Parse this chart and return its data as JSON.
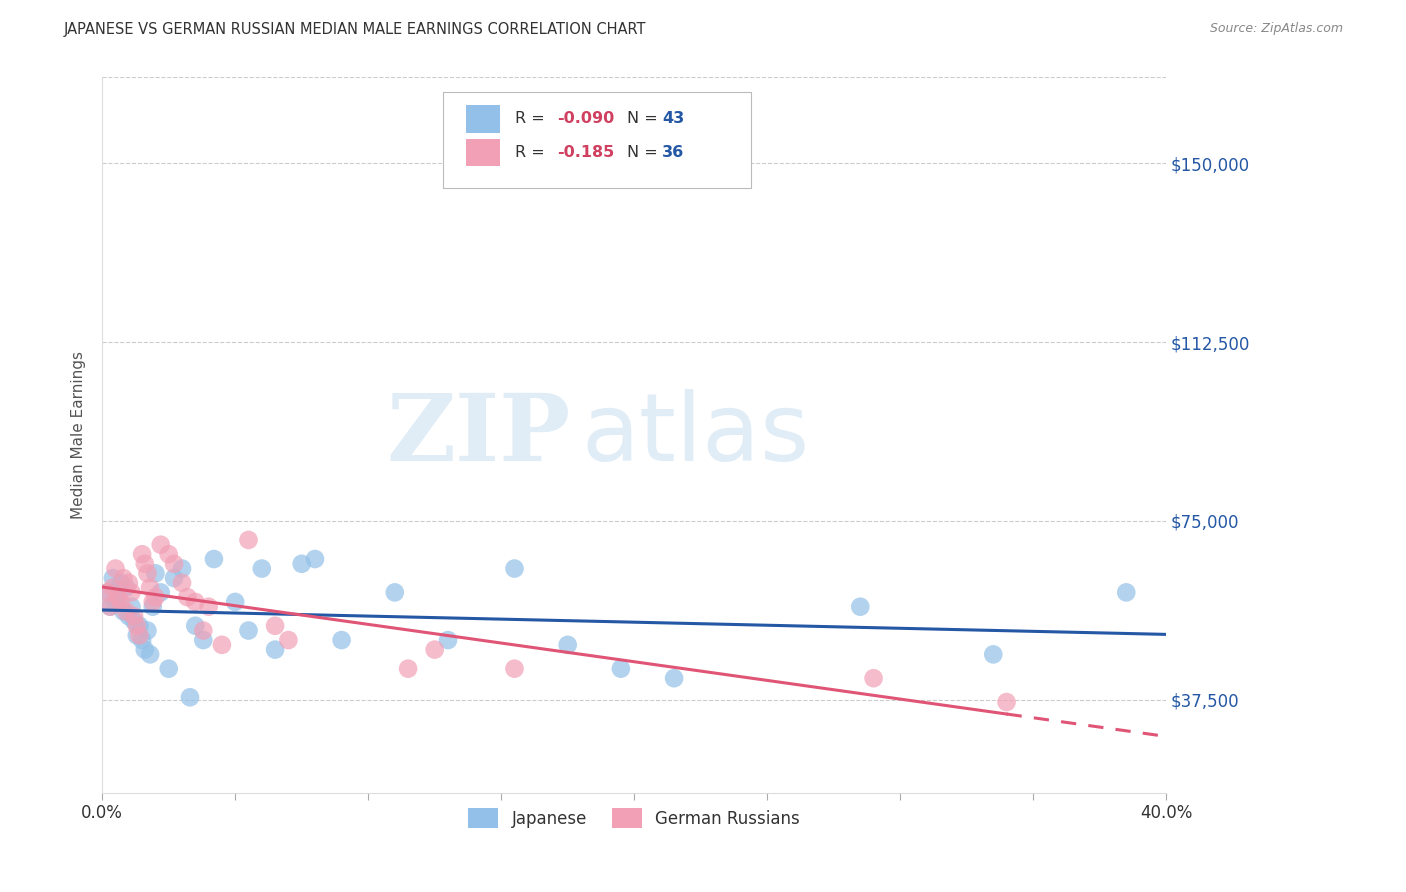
{
  "title": "JAPANESE VS GERMAN RUSSIAN MEDIAN MALE EARNINGS CORRELATION CHART",
  "source": "Source: ZipAtlas.com",
  "ylabel": "Median Male Earnings",
  "xlim": [
    0.0,
    0.4
  ],
  "ylim": [
    18000,
    168000
  ],
  "yticks": [
    37500,
    75000,
    112500,
    150000
  ],
  "ytick_labels": [
    "$37,500",
    "$75,000",
    "$112,500",
    "$150,000"
  ],
  "xticks": [
    0.0,
    0.05,
    0.1,
    0.15,
    0.2,
    0.25,
    0.3,
    0.35,
    0.4
  ],
  "xtick_labels": [
    "0.0%",
    "",
    "",
    "",
    "",
    "",
    "",
    "",
    "40.0%"
  ],
  "blue_color": "#92C0E8",
  "pink_color": "#F2A0B5",
  "trend_blue": "#2457A4",
  "trend_pink": "#E05575",
  "watermark_zip": "ZIP",
  "watermark_atlas": "atlas",
  "japanese_x": [
    0.002,
    0.003,
    0.004,
    0.005,
    0.006,
    0.007,
    0.008,
    0.009,
    0.01,
    0.011,
    0.012,
    0.013,
    0.014,
    0.015,
    0.016,
    0.017,
    0.018,
    0.019,
    0.02,
    0.022,
    0.025,
    0.027,
    0.03,
    0.033,
    0.035,
    0.038,
    0.042,
    0.05,
    0.055,
    0.06,
    0.065,
    0.075,
    0.08,
    0.09,
    0.11,
    0.13,
    0.155,
    0.175,
    0.195,
    0.215,
    0.285,
    0.335,
    0.385
  ],
  "japanese_y": [
    60000,
    57000,
    63000,
    58000,
    59000,
    62000,
    56000,
    61000,
    55000,
    57000,
    54000,
    51000,
    53000,
    50000,
    48000,
    52000,
    47000,
    57000,
    64000,
    60000,
    44000,
    63000,
    65000,
    38000,
    53000,
    50000,
    67000,
    58000,
    52000,
    65000,
    48000,
    66000,
    67000,
    50000,
    60000,
    50000,
    65000,
    49000,
    44000,
    42000,
    57000,
    47000,
    60000
  ],
  "german_russian_x": [
    0.002,
    0.003,
    0.004,
    0.005,
    0.006,
    0.007,
    0.008,
    0.009,
    0.01,
    0.011,
    0.012,
    0.013,
    0.014,
    0.015,
    0.016,
    0.017,
    0.018,
    0.019,
    0.02,
    0.022,
    0.025,
    0.027,
    0.03,
    0.032,
    0.035,
    0.038,
    0.04,
    0.045,
    0.055,
    0.065,
    0.07,
    0.115,
    0.125,
    0.155,
    0.29,
    0.34
  ],
  "german_russian_y": [
    60000,
    57000,
    61000,
    65000,
    59000,
    58000,
    63000,
    56000,
    62000,
    60000,
    55000,
    53000,
    51000,
    68000,
    66000,
    64000,
    61000,
    58000,
    59000,
    70000,
    68000,
    66000,
    62000,
    59000,
    58000,
    52000,
    57000,
    49000,
    71000,
    53000,
    50000,
    44000,
    48000,
    44000,
    42000,
    37000
  ],
  "legend_R1": "R =",
  "legend_V1": "-0.090",
  "legend_N1_label": "N =",
  "legend_N1": "43",
  "legend_R2": "R =",
  "legend_V2": "-0.185",
  "legend_N2_label": "N =",
  "legend_N2": "36"
}
